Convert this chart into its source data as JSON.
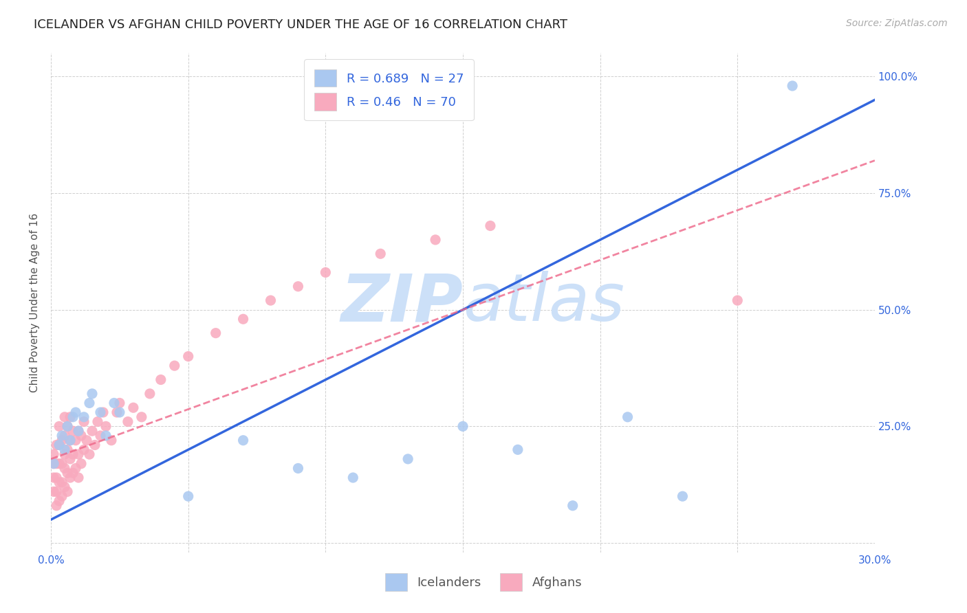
{
  "title": "ICELANDER VS AFGHAN CHILD POVERTY UNDER THE AGE OF 16 CORRELATION CHART",
  "source": "Source: ZipAtlas.com",
  "ylabel": "Child Poverty Under the Age of 16",
  "xlim": [
    0.0,
    0.3
  ],
  "ylim": [
    -0.02,
    1.05
  ],
  "icelanders_R": 0.689,
  "icelanders_N": 27,
  "afghans_R": 0.46,
  "afghans_N": 70,
  "icelander_color": "#aac8f0",
  "afghan_color": "#f8aabe",
  "line_blue": "#3366dd",
  "line_pink": "#ee6688",
  "watermark_color": "#cce0f8",
  "icelander_x": [
    0.001,
    0.003,
    0.004,
    0.005,
    0.006,
    0.007,
    0.008,
    0.009,
    0.01,
    0.012,
    0.014,
    0.015,
    0.018,
    0.02,
    0.023,
    0.025,
    0.05,
    0.07,
    0.09,
    0.11,
    0.13,
    0.15,
    0.17,
    0.19,
    0.21,
    0.23,
    0.27
  ],
  "icelander_y": [
    0.17,
    0.21,
    0.23,
    0.2,
    0.25,
    0.22,
    0.27,
    0.28,
    0.24,
    0.27,
    0.3,
    0.32,
    0.28,
    0.23,
    0.3,
    0.28,
    0.1,
    0.22,
    0.16,
    0.14,
    0.18,
    0.25,
    0.2,
    0.08,
    0.27,
    0.1,
    0.98
  ],
  "afghan_x": [
    0.001,
    0.001,
    0.001,
    0.001,
    0.002,
    0.002,
    0.002,
    0.002,
    0.002,
    0.003,
    0.003,
    0.003,
    0.003,
    0.003,
    0.004,
    0.004,
    0.004,
    0.004,
    0.005,
    0.005,
    0.005,
    0.005,
    0.005,
    0.006,
    0.006,
    0.006,
    0.006,
    0.007,
    0.007,
    0.007,
    0.007,
    0.008,
    0.008,
    0.008,
    0.009,
    0.009,
    0.01,
    0.01,
    0.01,
    0.011,
    0.011,
    0.012,
    0.012,
    0.013,
    0.014,
    0.015,
    0.016,
    0.017,
    0.018,
    0.019,
    0.02,
    0.022,
    0.024,
    0.025,
    0.028,
    0.03,
    0.033,
    0.036,
    0.04,
    0.045,
    0.05,
    0.06,
    0.07,
    0.08,
    0.09,
    0.1,
    0.12,
    0.14,
    0.16,
    0.25
  ],
  "afghan_y": [
    0.11,
    0.14,
    0.17,
    0.19,
    0.08,
    0.11,
    0.14,
    0.17,
    0.21,
    0.09,
    0.13,
    0.17,
    0.21,
    0.25,
    0.1,
    0.13,
    0.17,
    0.22,
    0.12,
    0.16,
    0.19,
    0.23,
    0.27,
    0.11,
    0.15,
    0.2,
    0.25,
    0.14,
    0.18,
    0.22,
    0.27,
    0.15,
    0.19,
    0.24,
    0.16,
    0.22,
    0.14,
    0.19,
    0.24,
    0.17,
    0.23,
    0.2,
    0.26,
    0.22,
    0.19,
    0.24,
    0.21,
    0.26,
    0.23,
    0.28,
    0.25,
    0.22,
    0.28,
    0.3,
    0.26,
    0.29,
    0.27,
    0.32,
    0.35,
    0.38,
    0.4,
    0.45,
    0.48,
    0.52,
    0.55,
    0.58,
    0.62,
    0.65,
    0.68,
    0.52
  ],
  "background_color": "#ffffff",
  "grid_color": "#bbbbbb",
  "title_fontsize": 13,
  "axis_label_fontsize": 11,
  "tick_fontsize": 11,
  "legend_fontsize": 13,
  "source_fontsize": 10
}
